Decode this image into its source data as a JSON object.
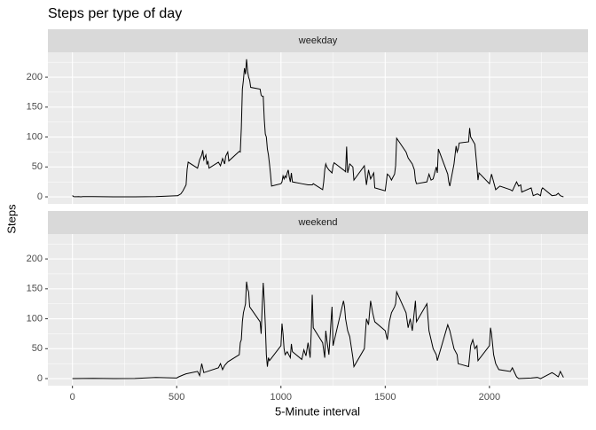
{
  "chart_data": {
    "type": "line",
    "title": "Steps per type of day",
    "x_label": "5-Minute interval",
    "y_label": "Steps",
    "color": "#000000",
    "grid": true,
    "xlim": [
      -117.75,
      2472.75
    ],
    "xticks": [
      0,
      500,
      1000,
      1500,
      2000
    ],
    "ylim": [
      -11.8,
      241.6
    ],
    "yticks": [
      0,
      50,
      100,
      150,
      200
    ],
    "panels": [
      {
        "strip": "weekday",
        "x": [
          0,
          5,
          10,
          20,
          30,
          40,
          50,
          100,
          200,
          300,
          400,
          500,
          505,
          520,
          530,
          545,
          550,
          555,
          600,
          610,
          620,
          625,
          630,
          640,
          645,
          650,
          655,
          700,
          710,
          720,
          730,
          735,
          745,
          750,
          800,
          805,
          810,
          815,
          820,
          825,
          830,
          835,
          840,
          845,
          850,
          855,
          900,
          905,
          910,
          915,
          920,
          925,
          930,
          935,
          940,
          945,
          950,
          955,
          1000,
          1005,
          1010,
          1015,
          1020,
          1025,
          1030,
          1035,
          1040,
          1045,
          1050,
          1055,
          1100,
          1130,
          1150,
          1155,
          1200,
          1205,
          1210,
          1215,
          1220,
          1230,
          1245,
          1250,
          1255,
          1300,
          1310,
          1315,
          1320,
          1330,
          1345,
          1350,
          1400,
          1410,
          1420,
          1430,
          1445,
          1450,
          1500,
          1510,
          1520,
          1530,
          1545,
          1550,
          1555,
          1600,
          1610,
          1620,
          1630,
          1640,
          1645,
          1650,
          1700,
          1710,
          1720,
          1730,
          1745,
          1750,
          1755,
          1800,
          1805,
          1810,
          1830,
          1840,
          1845,
          1850,
          1855,
          1900,
          1905,
          1910,
          1930,
          1940,
          1945,
          1950,
          2000,
          2010,
          2020,
          2030,
          2040,
          2050,
          2100,
          2110,
          2130,
          2140,
          2150,
          2155,
          2200,
          2210,
          2230,
          2245,
          2250,
          2255,
          2300,
          2320,
          2330,
          2340,
          2355
        ],
        "values": [
          2.3,
          0.5,
          0.2,
          0.2,
          0.5,
          0,
          0.4,
          0.4,
          0,
          0,
          0.5,
          2,
          2,
          5,
          10,
          20,
          46,
          58,
          48,
          62,
          70,
          78,
          62,
          70,
          54,
          60,
          48,
          58,
          52,
          64,
          55,
          68,
          75,
          60,
          76,
          75,
          115,
          180,
          195,
          215,
          205,
          230,
          210,
          200,
          195,
          183,
          180,
          170,
          168,
          168,
          130,
          105,
          100,
          80,
          70,
          55,
          38,
          18,
          22,
          25,
          35,
          30,
          35,
          32,
          40,
          45,
          33,
          25,
          40,
          25,
          22,
          20,
          20,
          22,
          12,
          25,
          45,
          55,
          50,
          45,
          40,
          52,
          57,
          45,
          42,
          84,
          40,
          55,
          50,
          28,
          52,
          20,
          45,
          30,
          40,
          15,
          10,
          38,
          35,
          28,
          38,
          52,
          98,
          75,
          65,
          60,
          55,
          45,
          28,
          22,
          25,
          38,
          28,
          30,
          50,
          40,
          80,
          38,
          25,
          18,
          55,
          85,
          75,
          80,
          90,
          92,
          115,
          100,
          88,
          50,
          28,
          40,
          22,
          38,
          25,
          12,
          15,
          18,
          12,
          10,
          25,
          18,
          20,
          8,
          15,
          2,
          5,
          2,
          12,
          15,
          2,
          3,
          6,
          2,
          0
        ]
      },
      {
        "strip": "weekend",
        "x": [
          0,
          100,
          200,
          300,
          400,
          500,
          510,
          530,
          545,
          600,
          610,
          620,
          630,
          700,
          710,
          720,
          730,
          745,
          800,
          805,
          810,
          815,
          820,
          830,
          835,
          840,
          845,
          850,
          900,
          905,
          910,
          915,
          920,
          925,
          930,
          935,
          940,
          945,
          1000,
          1005,
          1010,
          1015,
          1020,
          1030,
          1045,
          1050,
          1055,
          1100,
          1110,
          1120,
          1130,
          1140,
          1145,
          1150,
          1155,
          1200,
          1210,
          1215,
          1220,
          1230,
          1240,
          1245,
          1250,
          1300,
          1305,
          1310,
          1320,
          1330,
          1345,
          1350,
          1400,
          1410,
          1420,
          1430,
          1440,
          1450,
          1500,
          1510,
          1520,
          1530,
          1545,
          1550,
          1555,
          1600,
          1610,
          1620,
          1630,
          1645,
          1650,
          1700,
          1710,
          1720,
          1730,
          1745,
          1750,
          1800,
          1810,
          1820,
          1830,
          1845,
          1850,
          1900,
          1910,
          1920,
          1930,
          1940,
          1945,
          2000,
          2005,
          2010,
          2020,
          2030,
          2045,
          2100,
          2110,
          2130,
          2140,
          2200,
          2230,
          2245,
          2300,
          2310,
          2330,
          2340,
          2355
        ],
        "values": [
          0,
          0.5,
          0,
          0.3,
          2,
          1,
          3,
          6,
          8,
          12,
          5,
          25,
          10,
          18,
          25,
          15,
          22,
          28,
          40,
          60,
          65,
          95,
          110,
          125,
          162,
          150,
          145,
          120,
          95,
          75,
          120,
          160,
          130,
          90,
          40,
          20,
          35,
          30,
          55,
          92,
          75,
          50,
          40,
          45,
          35,
          58,
          45,
          32,
          48,
          38,
          60,
          35,
          75,
          140,
          85,
          60,
          35,
          80,
          65,
          40,
          95,
          120,
          55,
          130,
          120,
          100,
          80,
          70,
          35,
          20,
          50,
          100,
          90,
          130,
          110,
          95,
          80,
          65,
          95,
          110,
          120,
          125,
          145,
          110,
          85,
          100,
          80,
          130,
          95,
          125,
          80,
          65,
          50,
          40,
          30,
          90,
          80,
          65,
          50,
          40,
          25,
          20,
          55,
          65,
          50,
          55,
          30,
          55,
          85,
          75,
          40,
          25,
          15,
          12,
          18,
          3,
          0,
          1,
          2,
          0,
          10,
          8,
          3,
          12,
          2
        ]
      }
    ]
  }
}
